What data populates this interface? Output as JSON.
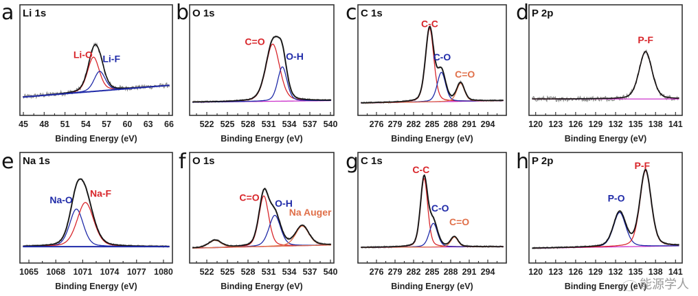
{
  "figure": {
    "watermark": "能源学人",
    "watermark_icon": "wechat-logo-icon"
  },
  "colors": {
    "raw": "#8a8a8a",
    "envelope": "#111111",
    "background": "#cc33cc",
    "red": "#d8262b",
    "blue": "#1f2aa8",
    "orange": "#e0704a",
    "frame": "#333333"
  },
  "chart_data": [
    {
      "type": "line",
      "panel": "a",
      "title": "Li 1s",
      "xlabel": "Binding Energy (eV)",
      "ylabel": "",
      "xlim": [
        44.5,
        66.5
      ],
      "xticks": [
        45,
        48,
        51,
        54,
        57,
        60,
        63,
        66
      ],
      "noisy": true,
      "background": {
        "y_at_xmin": 0.12,
        "y_at_xmax": 0.27
      },
      "series": [
        {
          "name": "Li-O",
          "center": 55.1,
          "height": 0.42,
          "fwhm": 2.0,
          "color": "red"
        },
        {
          "name": "Li-F",
          "center": 56.0,
          "height": 0.24,
          "fwhm": 1.9,
          "color": "blue"
        }
      ],
      "labels": [
        {
          "text": "Li-O",
          "color": "red",
          "at_x": 53.6,
          "at_y": 0.6
        },
        {
          "text": "Li-F",
          "color": "blue",
          "at_x": 57.7,
          "at_y": 0.55
        }
      ]
    },
    {
      "type": "line",
      "panel": "b",
      "title": "O 1s",
      "xlabel": "Binding Energy (eV)",
      "ylabel": "",
      "xlim": [
        519.5,
        540.5
      ],
      "xticks": [
        522,
        525,
        528,
        531,
        534,
        537,
        540
      ],
      "noisy": false,
      "background": {
        "y_at_xmin": 0.06,
        "y_at_xmax": 0.08
      },
      "series": [
        {
          "name": "C=O",
          "center": 531.6,
          "height": 0.7,
          "fwhm": 2.4,
          "color": "red"
        },
        {
          "name": "O-H",
          "center": 533.0,
          "height": 0.42,
          "fwhm": 1.6,
          "color": "blue"
        }
      ],
      "labels": [
        {
          "text": "C=O",
          "color": "red",
          "at_x": 529.0,
          "at_y": 0.76
        },
        {
          "text": "O-H",
          "color": "blue",
          "at_x": 534.8,
          "at_y": 0.58
        }
      ]
    },
    {
      "type": "line",
      "panel": "c",
      "title": "C 1s",
      "xlabel": "Binding Energy (eV)",
      "ylabel": "",
      "xlim": [
        273.0,
        297.0
      ],
      "xticks": [
        276,
        279,
        282,
        285,
        288,
        291,
        294
      ],
      "noisy": false,
      "background": {
        "y_at_xmin": 0.05,
        "y_at_xmax": 0.08
      },
      "series": [
        {
          "name": "C-C",
          "center": 284.6,
          "height": 0.9,
          "fwhm": 1.6,
          "color": "red"
        },
        {
          "name": "C-O",
          "center": 286.5,
          "height": 0.36,
          "fwhm": 1.6,
          "color": "blue"
        },
        {
          "name": "C=O",
          "center": 289.6,
          "height": 0.22,
          "fwhm": 1.5,
          "color": "orange"
        }
      ],
      "labels": [
        {
          "text": "C-C",
          "color": "red",
          "at_x": 284.6,
          "at_y": 0.98
        },
        {
          "text": "C-O",
          "color": "blue",
          "at_x": 286.6,
          "at_y": 0.57
        },
        {
          "text": "C=O",
          "color": "orange",
          "at_x": 290.3,
          "at_y": 0.36
        }
      ]
    },
    {
      "type": "line",
      "panel": "d",
      "title": "P 2p",
      "xlabel": "Binding Energy (eV)",
      "ylabel": "",
      "xlim": [
        119.0,
        142.0
      ],
      "xticks": [
        120,
        123,
        126,
        129,
        132,
        135,
        138,
        141
      ],
      "noisy": true,
      "background": {
        "y_at_xmin": 0.1,
        "y_at_xmax": 0.1
      },
      "series": [
        {
          "name": "P-F",
          "center": 136.5,
          "height": 0.58,
          "fwhm": 2.3,
          "color": "red"
        }
      ],
      "labels": [
        {
          "text": "P-F",
          "color": "red",
          "at_x": 136.5,
          "at_y": 0.78
        }
      ]
    },
    {
      "type": "line",
      "panel": "e",
      "title": "Na 1s",
      "xlabel": "Binding Energy (eV)",
      "ylabel": "",
      "xlim": [
        1064.0,
        1081.0
      ],
      "xticks": [
        1065,
        1068,
        1071,
        1074,
        1077,
        1080
      ],
      "noisy": false,
      "background": {
        "y_at_xmin": 0.1,
        "y_at_xmax": 0.1
      },
      "series": [
        {
          "name": "Na-O",
          "center": 1070.3,
          "height": 0.46,
          "fwhm": 1.8,
          "color": "blue"
        },
        {
          "name": "Na-F",
          "center": 1071.3,
          "height": 0.54,
          "fwhm": 2.2,
          "color": "red"
        }
      ],
      "labels": [
        {
          "text": "Na-O",
          "color": "blue",
          "at_x": 1068.6,
          "at_y": 0.63
        },
        {
          "text": "Na-F",
          "color": "red",
          "at_x": 1073.0,
          "at_y": 0.71
        }
      ]
    },
    {
      "type": "line",
      "panel": "f",
      "title": "O 1s",
      "xlabel": "Binding Energy (eV)",
      "ylabel": "",
      "xlim": [
        519.5,
        540.5
      ],
      "xticks": [
        522,
        525,
        528,
        531,
        534,
        537,
        540
      ],
      "noisy": false,
      "background": {
        "y_at_xmin": 0.08,
        "y_at_xmax": 0.12
      },
      "series": [
        {
          "name": "C=O",
          "center": 530.3,
          "height": 0.62,
          "fwhm": 1.7,
          "color": "red"
        },
        {
          "name": "O-H",
          "center": 531.9,
          "height": 0.38,
          "fwhm": 2.0,
          "color": "blue"
        },
        {
          "name": "Na Auger",
          "center": 535.9,
          "height": 0.24,
          "fwhm": 2.3,
          "color": "orange"
        },
        {
          "name": "Na Auger",
          "center": 523.2,
          "height": 0.09,
          "fwhm": 2.2,
          "color": "orange"
        }
      ],
      "labels": [
        {
          "text": "C=O",
          "color": "red",
          "at_x": 528.2,
          "at_y": 0.66
        },
        {
          "text": "O-H",
          "color": "blue",
          "at_x": 533.2,
          "at_y": 0.59
        },
        {
          "text": "Na Auger",
          "color": "orange",
          "at_x": 537.3,
          "at_y": 0.48
        }
      ]
    },
    {
      "type": "line",
      "panel": "g",
      "title": "C 1s",
      "xlabel": "Binding Energy (eV)",
      "ylabel": "",
      "xlim": [
        273.0,
        297.0
      ],
      "xticks": [
        276,
        279,
        282,
        285,
        288,
        291,
        294
      ],
      "noisy": false,
      "background": {
        "y_at_xmin": 0.09,
        "y_at_xmax": 0.1
      },
      "series": [
        {
          "name": "C-C",
          "center": 283.7,
          "height": 0.84,
          "fwhm": 1.4,
          "color": "red"
        },
        {
          "name": "C-O",
          "center": 285.2,
          "height": 0.29,
          "fwhm": 1.6,
          "color": "blue"
        },
        {
          "name": "C=O",
          "center": 288.6,
          "height": 0.12,
          "fwhm": 1.4,
          "color": "orange"
        }
      ],
      "labels": [
        {
          "text": "C-C",
          "color": "red",
          "at_x": 283.2,
          "at_y": 1.0
        },
        {
          "text": "C-O",
          "color": "blue",
          "at_x": 286.3,
          "at_y": 0.53
        },
        {
          "text": "C=O",
          "color": "orange",
          "at_x": 289.4,
          "at_y": 0.36
        }
      ]
    },
    {
      "type": "line",
      "panel": "h",
      "title": "P 2p",
      "xlabel": "Binding Energy (eV)",
      "ylabel": "",
      "xlim": [
        119.0,
        142.0
      ],
      "xticks": [
        120,
        123,
        126,
        129,
        132,
        135,
        138,
        141
      ],
      "noisy": false,
      "background": {
        "y_at_xmin": 0.08,
        "y_at_xmax": 0.11
      },
      "series": [
        {
          "name": "P-O",
          "center": 132.6,
          "height": 0.42,
          "fwhm": 2.2,
          "color": "blue"
        },
        {
          "name": "P-F",
          "center": 136.5,
          "height": 0.93,
          "fwhm": 2.0,
          "color": "red"
        }
      ],
      "labels": [
        {
          "text": "P-O",
          "color": "blue",
          "at_x": 132.1,
          "at_y": 0.65
        },
        {
          "text": "P-F",
          "color": "red",
          "at_x": 136.0,
          "at_y": 1.05
        }
      ]
    }
  ]
}
